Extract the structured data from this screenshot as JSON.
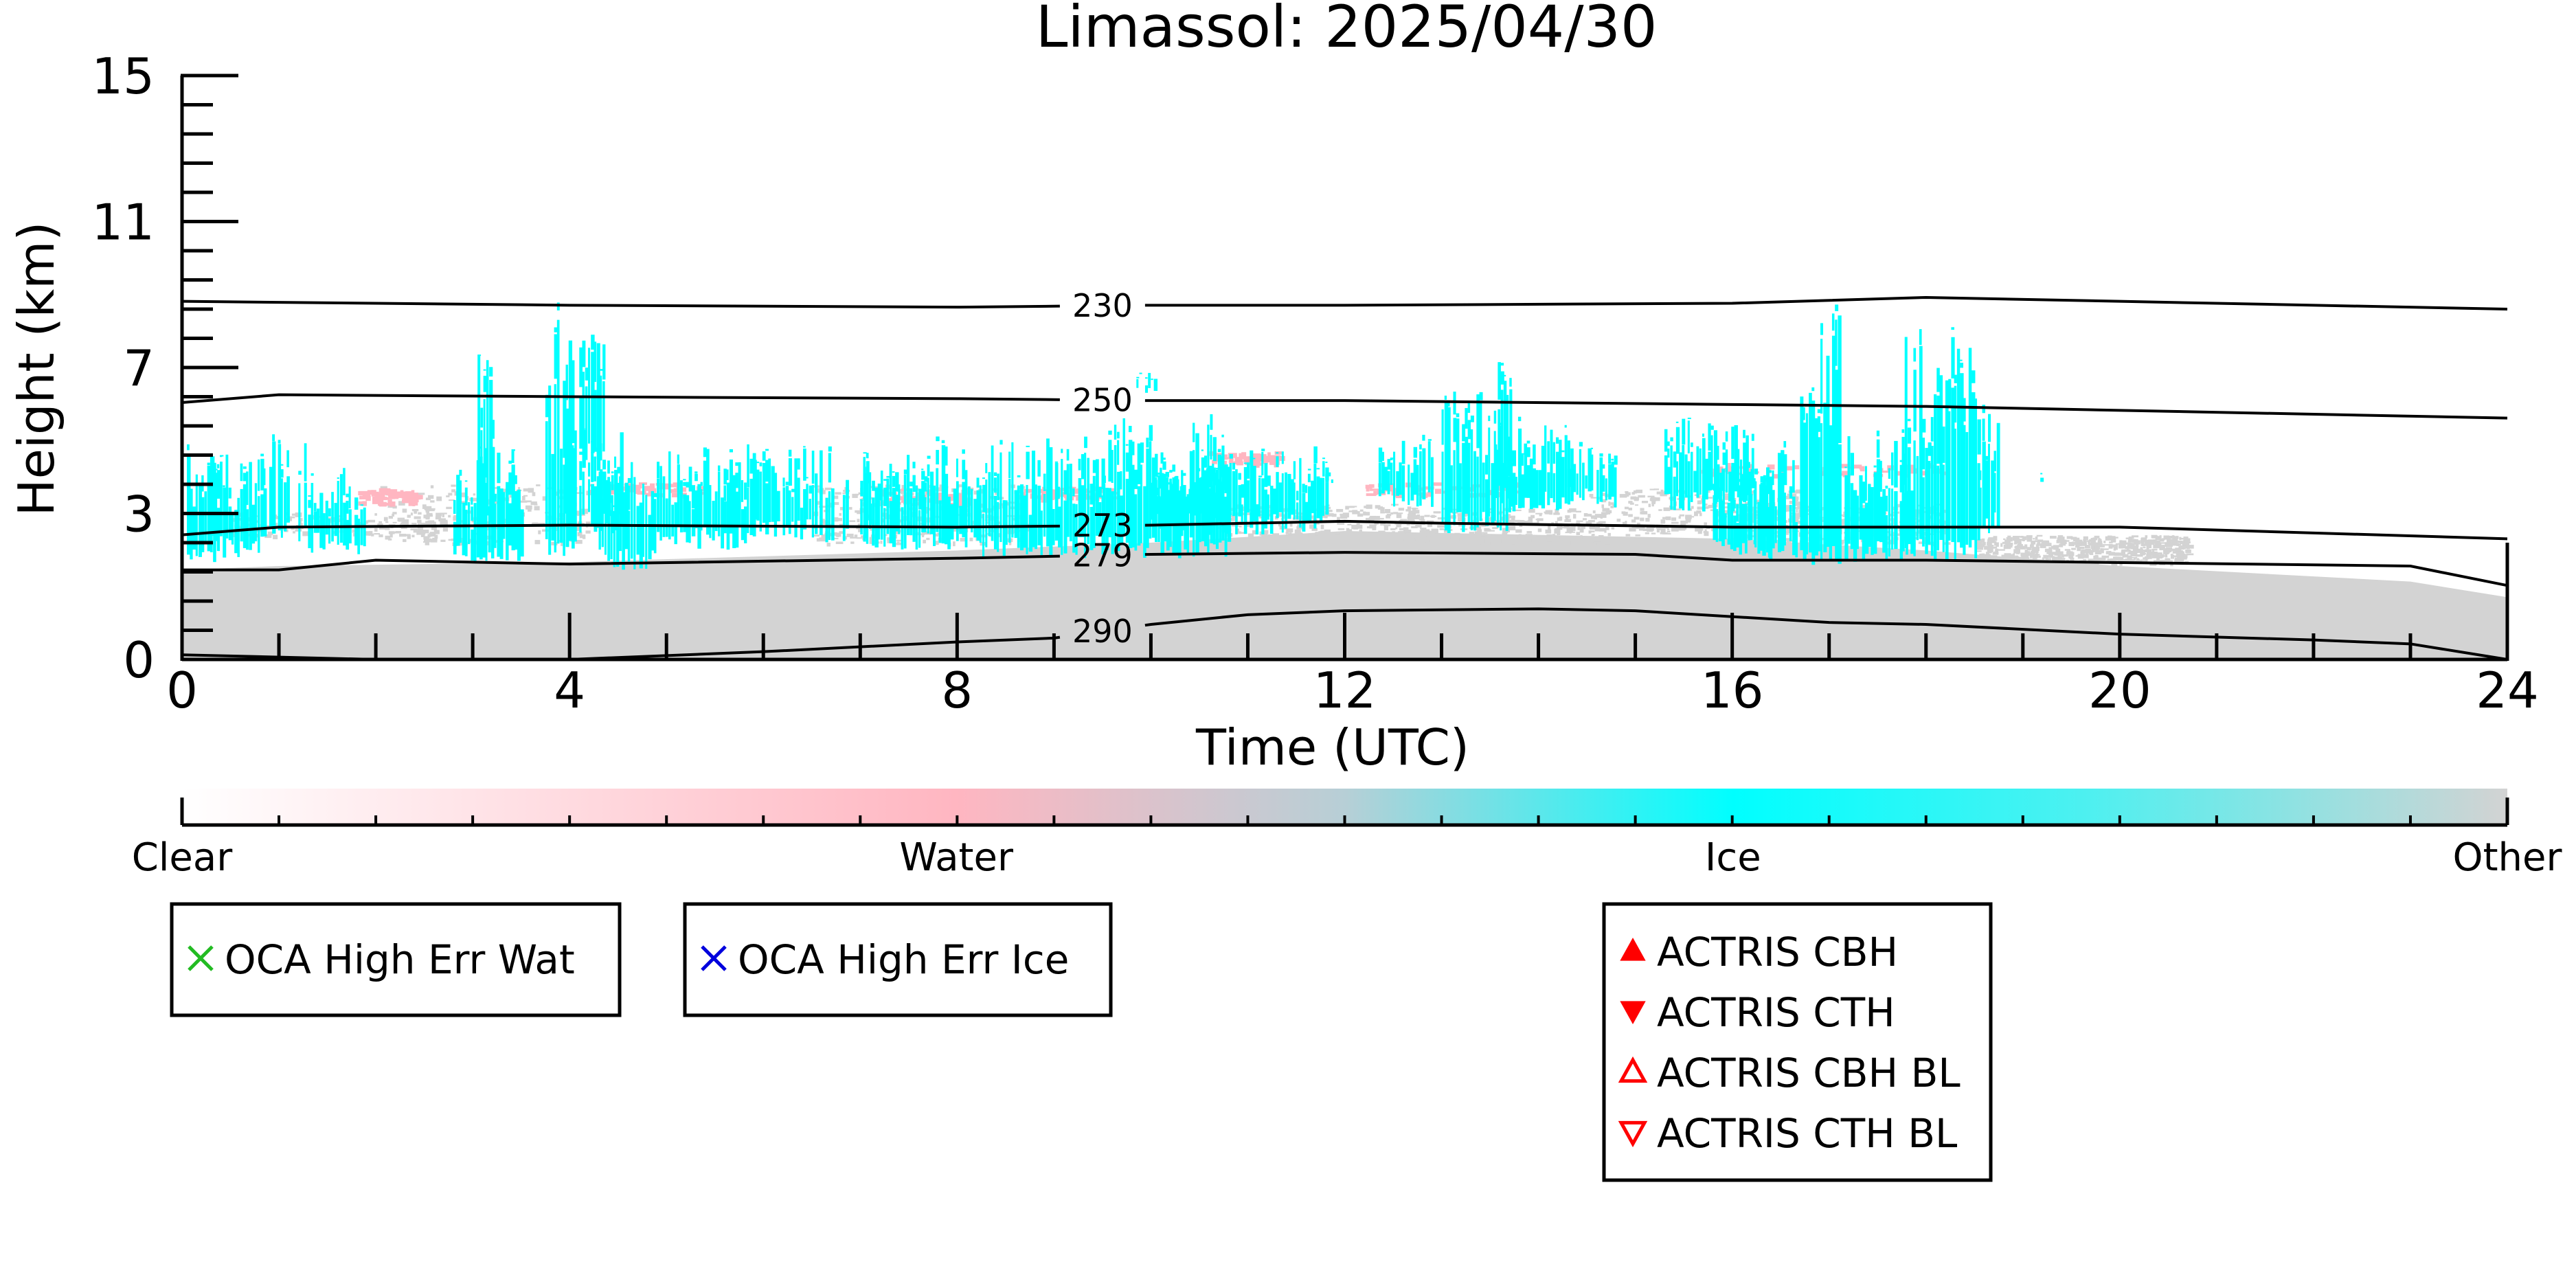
{
  "chart_data": {
    "type": "heatmap",
    "title": "Limassol: 2025/04/30",
    "xlabel": "Time (UTC)",
    "ylabel": "Height (km)",
    "xlim": [
      0,
      24
    ],
    "ylim": [
      0,
      15
    ],
    "x_ticks": [
      "0",
      "4",
      "8",
      "12",
      "16",
      "20",
      "24"
    ],
    "y_ticks": [
      "0",
      "3",
      "7",
      "11",
      "15"
    ],
    "x_tick_values": [
      0,
      4,
      8,
      12,
      16,
      20,
      24
    ],
    "y_tick_values": [
      0,
      3.75,
      7.5,
      11.25,
      15
    ],
    "colors": {
      "clear": "#ffffff",
      "water": "#ffb6c1",
      "ice": "#00ffff",
      "other": "#d3d3d3",
      "line": "#000000"
    },
    "colorbar": {
      "labels": [
        "Clear",
        "Water",
        "Ice",
        "Other"
      ],
      "positions": [
        0,
        0.333,
        0.667,
        1
      ]
    },
    "contours": [
      {
        "label": "230",
        "label_x": 9.5,
        "points": [
          [
            0,
            9.2
          ],
          [
            4,
            9.1
          ],
          [
            8,
            9.05
          ],
          [
            10,
            9.1
          ],
          [
            12,
            9.1
          ],
          [
            16,
            9.15
          ],
          [
            18,
            9.3
          ],
          [
            20,
            9.2
          ],
          [
            24,
            9.0
          ]
        ]
      },
      {
        "label": "250",
        "label_x": 9.5,
        "points": [
          [
            0,
            6.6
          ],
          [
            1,
            6.8
          ],
          [
            4,
            6.75
          ],
          [
            8,
            6.7
          ],
          [
            10,
            6.65
          ],
          [
            12,
            6.65
          ],
          [
            16,
            6.55
          ],
          [
            18,
            6.5
          ],
          [
            20,
            6.4
          ],
          [
            24,
            6.2
          ]
        ]
      },
      {
        "label": "273",
        "label_x": 9.5,
        "points": [
          [
            0,
            3.2
          ],
          [
            1,
            3.4
          ],
          [
            4,
            3.45
          ],
          [
            8,
            3.4
          ],
          [
            10,
            3.45
          ],
          [
            12,
            3.55
          ],
          [
            13,
            3.5
          ],
          [
            16,
            3.4
          ],
          [
            18,
            3.4
          ],
          [
            20,
            3.4
          ],
          [
            24,
            3.1
          ]
        ]
      },
      {
        "label": "279",
        "label_x": 9.5,
        "points": [
          [
            0,
            2.3
          ],
          [
            1,
            2.3
          ],
          [
            2,
            2.55
          ],
          [
            4,
            2.45
          ],
          [
            8,
            2.6
          ],
          [
            10,
            2.7
          ],
          [
            12,
            2.75
          ],
          [
            15,
            2.7
          ],
          [
            16,
            2.55
          ],
          [
            18,
            2.55
          ],
          [
            23,
            2.4
          ],
          [
            24,
            1.9
          ]
        ]
      },
      {
        "label": "290",
        "label_x": 9.5,
        "points": [
          [
            0,
            0.12
          ],
          [
            2,
            0.0
          ],
          [
            4,
            0.0
          ],
          [
            6,
            0.2
          ],
          [
            8,
            0.45
          ],
          [
            9,
            0.55
          ],
          [
            10,
            0.9
          ],
          [
            11,
            1.15
          ],
          [
            12,
            1.25
          ],
          [
            14,
            1.3
          ],
          [
            15,
            1.25
          ],
          [
            17,
            0.95
          ],
          [
            18,
            0.9
          ],
          [
            20,
            0.65
          ],
          [
            22,
            0.5
          ],
          [
            23,
            0.4
          ],
          [
            24,
            0.0
          ]
        ]
      }
    ],
    "regions": {
      "other_base": [
        [
          0,
          2.3
        ],
        [
          1,
          2.4
        ],
        [
          4,
          2.5
        ],
        [
          8,
          2.8
        ],
        [
          10,
          3.0
        ],
        [
          12,
          3.3
        ],
        [
          16,
          3.1
        ],
        [
          18,
          2.8
        ],
        [
          20,
          2.4
        ],
        [
          23,
          2.0
        ],
        [
          24,
          1.6
        ]
      ],
      "other_speckle": [
        [
          0.5,
          3.2,
          3.8,
          0.8
        ],
        [
          2.0,
          3.0,
          4.5,
          1.2
        ],
        [
          6.5,
          3.0,
          4.5,
          1.5
        ],
        [
          10.5,
          3.2,
          4.0,
          1.2
        ],
        [
          12.5,
          3.0,
          3.9,
          1.5
        ],
        [
          14.5,
          3.2,
          4.4,
          1.5
        ],
        [
          16.0,
          3.0,
          4.0,
          1.8
        ],
        [
          18.5,
          2.5,
          3.2,
          3.0
        ]
      ],
      "water": [
        [
          1.8,
          4.2,
          0.6,
          0.4
        ],
        [
          4.2,
          4.4,
          1.2,
          0.3
        ],
        [
          7.2,
          4.2,
          0.9,
          0.4
        ],
        [
          8.6,
          4.3,
          1.0,
          0.3
        ],
        [
          10.6,
          5.2,
          0.7,
          0.3
        ],
        [
          12.2,
          4.4,
          1.6,
          0.3
        ],
        [
          15.6,
          4.9,
          2.6,
          0.3
        ]
      ],
      "ice": [
        [
          0.0,
          0.0,
          2.8,
          7.8,
          1.0
        ],
        [
          0.05,
          0.35,
          2.5,
          5.9,
          1.0
        ],
        [
          0.3,
          0.85,
          2.6,
          5.6,
          0.9
        ],
        [
          0.9,
          1.3,
          3.0,
          6.2,
          0.6
        ],
        [
          1.3,
          1.9,
          2.7,
          5.0,
          0.8
        ],
        [
          2.8,
          3.5,
          2.5,
          5.6,
          1.0
        ],
        [
          3.05,
          3.2,
          3.2,
          8.6,
          0.8
        ],
        [
          3.75,
          4.05,
          2.5,
          9.3,
          1.0
        ],
        [
          4.1,
          4.35,
          5.0,
          8.9,
          0.8
        ],
        [
          3.95,
          4.55,
          3.2,
          6.0,
          0.8
        ],
        [
          4.3,
          4.9,
          2.3,
          5.3,
          1.0
        ],
        [
          4.9,
          5.9,
          2.8,
          5.7,
          0.9
        ],
        [
          5.9,
          6.55,
          3.0,
          5.5,
          0.8
        ],
        [
          5.85,
          6.0,
          7.6,
          8.0,
          0.4
        ],
        [
          6.55,
          7.1,
          3.0,
          5.7,
          0.5
        ],
        [
          7.0,
          8.2,
          2.8,
          5.8,
          1.0
        ],
        [
          8.2,
          9.5,
          2.6,
          6.0,
          1.0
        ],
        [
          9.5,
          10.8,
          2.6,
          6.5,
          1.0
        ],
        [
          9.85,
          10.05,
          6.8,
          7.4,
          0.7
        ],
        [
          10.0,
          11.8,
          3.2,
          5.5,
          1.0
        ],
        [
          11.8,
          12.0,
          4.5,
          4.9,
          0.5
        ],
        [
          12.35,
          12.9,
          3.9,
          5.9,
          0.8
        ],
        [
          13.0,
          13.7,
          3.2,
          7.0,
          1.0
        ],
        [
          13.55,
          13.7,
          4.0,
          8.1,
          0.9
        ],
        [
          13.7,
          14.3,
          3.8,
          6.3,
          0.9
        ],
        [
          14.3,
          14.8,
          3.9,
          5.8,
          0.8
        ],
        [
          15.3,
          16.2,
          3.8,
          6.4,
          0.9
        ],
        [
          15.8,
          16.4,
          2.6,
          5.2,
          0.8
        ],
        [
          16.2,
          16.7,
          2.5,
          5.8,
          0.8
        ],
        [
          16.7,
          17.1,
          2.4,
          9.5,
          1.0
        ],
        [
          17.1,
          17.8,
          2.5,
          6.0,
          0.8
        ],
        [
          17.75,
          18.2,
          2.5,
          8.7,
          1.0
        ],
        [
          18.2,
          18.55,
          2.5,
          9.0,
          1.0
        ],
        [
          18.55,
          18.75,
          3.2,
          6.6,
          1.0
        ],
        [
          19.15,
          19.25,
          4.4,
          4.9,
          0.6
        ]
      ]
    }
  },
  "legend_boxes": [
    {
      "items": [
        {
          "label": "OCA High Err Wat",
          "marker": "x",
          "color": "#22bb22"
        }
      ]
    },
    {
      "items": [
        {
          "label": "OCA High Err Ice",
          "marker": "x",
          "color": "#0000dd"
        }
      ]
    },
    {
      "items": [
        {
          "label": "ACTRIS CBH",
          "marker": "triangle-up-filled",
          "color": "#ff0000"
        },
        {
          "label": "ACTRIS CTH",
          "marker": "triangle-down-filled",
          "color": "#ff0000"
        },
        {
          "label": "ACTRIS CBH BL",
          "marker": "triangle-up-open",
          "color": "#ff0000"
        },
        {
          "label": "ACTRIS CTH BL",
          "marker": "triangle-down-open",
          "color": "#ff0000"
        }
      ]
    }
  ]
}
